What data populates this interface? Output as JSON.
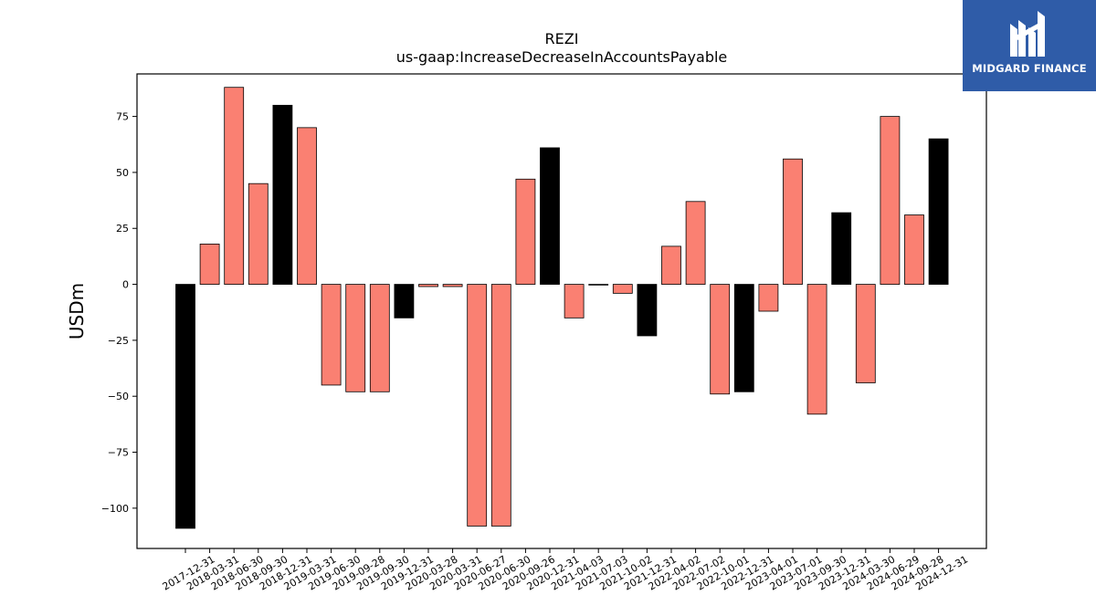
{
  "chart_data": {
    "type": "bar",
    "title": "REZI",
    "subtitle": "us-gaap:IncreaseDecreaseInAccountsPayable",
    "xlabel": "",
    "ylabel": "USDm",
    "ylim": [
      -118,
      94
    ],
    "yticks": [
      -100,
      -75,
      -50,
      -25,
      0,
      25,
      50,
      75
    ],
    "grid": false,
    "categories": [
      "2017-12-31",
      "2018-03-31",
      "2018-06-30",
      "2018-09-30",
      "2018-12-31",
      "2019-03-31",
      "2019-06-30",
      "2019-09-28",
      "2019-09-30",
      "2019-12-31",
      "2020-03-28",
      "2020-03-31",
      "2020-06-27",
      "2020-06-30",
      "2020-09-26",
      "2020-12-31",
      "2021-04-03",
      "2021-07-03",
      "2021-10-02",
      "2021-12-31",
      "2022-04-02",
      "2022-07-02",
      "2022-10-01",
      "2022-12-31",
      "2023-04-01",
      "2023-07-01",
      "2023-09-30",
      "2023-12-31",
      "2024-03-30",
      "2024-06-29",
      "2024-09-28",
      "2024-12-31"
    ],
    "values": [
      -109,
      18,
      88,
      45,
      80,
      70,
      -45,
      -48,
      -48,
      -15,
      -1,
      -1,
      -108,
      -108,
      47,
      61,
      -15,
      0,
      -4,
      -23,
      17,
      37,
      -49,
      -48,
      -12,
      56,
      -58,
      32,
      -44,
      75,
      31,
      65
    ],
    "highlight": [
      true,
      false,
      false,
      false,
      true,
      false,
      false,
      false,
      false,
      true,
      false,
      false,
      false,
      false,
      false,
      true,
      false,
      false,
      false,
      true,
      false,
      false,
      false,
      true,
      false,
      false,
      false,
      true,
      false,
      false,
      false,
      true
    ],
    "colors": {
      "bar": "#fa8072",
      "highlight": "#000000",
      "edge": "#000000"
    }
  },
  "logo": {
    "text": "MIDGARD FINANCE",
    "background": "#2f5ca8",
    "icon": "midgard-logo-icon"
  }
}
